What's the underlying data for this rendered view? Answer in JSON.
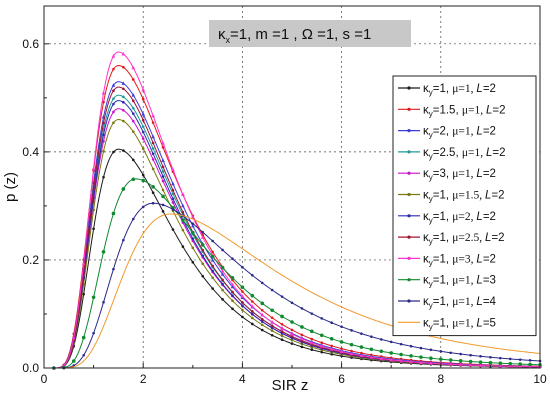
{
  "chart_data": {
    "type": "line",
    "title": "",
    "annotation": {
      "kappa_x": "κ",
      "kappa_x_sub": "x",
      "rest": "=1, m =1 , Ω =1, s =1"
    },
    "xlabel": "SIR z",
    "ylabel": "p (z)",
    "xlim": [
      0,
      10
    ],
    "ylim": [
      0,
      0.67
    ],
    "xticks": [
      0,
      2,
      4,
      6,
      8,
      10
    ],
    "yticks": [
      0.0,
      0.2,
      0.4,
      0.6
    ],
    "ytick_labels": [
      "0.0",
      "0.2",
      "0.4",
      "0.6"
    ],
    "grid": true,
    "legend_position": "right",
    "series": [
      {
        "name": "κy=1, μ=1, L=2",
        "legend": {
          "a": "κ",
          "sub": "y",
          "b": "=1, ",
          "mu": "μ=1, ",
          "L": "L",
          "c": "=2"
        },
        "color": "#1a1a1a",
        "marker": "point",
        "peak_x": 1.5,
        "peak_y": 0.405,
        "k": 5.5
      },
      {
        "name": "κy=1.5, μ=1, L=2",
        "legend": {
          "a": "κ",
          "sub": "y",
          "b": "=1.5, ",
          "mu": "μ=1, ",
          "L": "L",
          "c": "=2"
        },
        "color": "#e01b1b",
        "marker": "point",
        "peak_x": 1.5,
        "peak_y": 0.56,
        "k": 5.2
      },
      {
        "name": "κy=2, μ=1, L=2",
        "legend": {
          "a": "κ",
          "sub": "y",
          "b": "=2, ",
          "mu": "μ=1, ",
          "L": "L",
          "c": "=2"
        },
        "color": "#3c3cd8",
        "marker": "triangle",
        "peak_x": 1.5,
        "peak_y": 0.53,
        "k": 5.3
      },
      {
        "name": "κy=2.5, μ=1, L=2",
        "legend": {
          "a": "κ",
          "sub": "y",
          "b": "=2.5, ",
          "mu": "μ=1, ",
          "L": "L",
          "c": "=2"
        },
        "color": "#1e9a9a",
        "marker": "point",
        "peak_x": 1.5,
        "peak_y": 0.505,
        "k": 5.4
      },
      {
        "name": "κy=3, μ=1, L=2",
        "legend": {
          "a": "κ",
          "sub": "y",
          "b": "=3, ",
          "mu": "μ=1, ",
          "L": "L",
          "c": "=2"
        },
        "color": "#cc11cc",
        "marker": "point",
        "peak_x": 1.5,
        "peak_y": 0.48,
        "k": 5.4
      },
      {
        "name": "κy=1, μ=1.5, L=2",
        "legend": {
          "a": "κ",
          "sub": "y",
          "b": "=1, ",
          "mu": "μ=1.5, ",
          "L": "L",
          "c": "=2"
        },
        "color": "#7a7a10",
        "marker": "point",
        "peak_x": 1.5,
        "peak_y": 0.46,
        "k": 5.5
      },
      {
        "name": "κy=1, μ=2, L=2",
        "legend": {
          "a": "κ",
          "sub": "y",
          "b": "=1, ",
          "mu": "μ=2, ",
          "L": "L",
          "c": "=2"
        },
        "color": "#2b2bb0",
        "marker": "point",
        "peak_x": 1.5,
        "peak_y": 0.495,
        "k": 5.5
      },
      {
        "name": "κy=1, μ=2.5, L=2",
        "legend": {
          "a": "κ",
          "sub": "y",
          "b": "=1, ",
          "mu": "μ=2.5, ",
          "L": "L",
          "c": "=2"
        },
        "color": "#a01530",
        "marker": "point",
        "peak_x": 1.5,
        "peak_y": 0.52,
        "k": 5.5
      },
      {
        "name": "κy=1, μ=3, L=2",
        "legend": {
          "a": "κ",
          "sub": "y",
          "b": "=1, ",
          "mu": "μ=3, ",
          "L": "L",
          "c": "=2"
        },
        "color": "#ff33cc",
        "marker": "triangle",
        "peak_x": 1.5,
        "peak_y": 0.585,
        "k": 5.6
      },
      {
        "name": "κy=1, μ=1, L=3",
        "legend": {
          "a": "κ",
          "sub": "y",
          "b": "=1, ",
          "mu": "μ=1, ",
          "L": "L",
          "c": "=3"
        },
        "color": "#0f8a2f",
        "marker": "circle",
        "peak_x": 1.85,
        "peak_y": 0.35,
        "k": 5.2
      },
      {
        "name": "κy=1, μ=1, L=4",
        "legend": {
          "a": "κ",
          "sub": "y",
          "b": "=1, ",
          "mu": "μ=1, ",
          "L": "L",
          "c": "=4"
        },
        "color": "#2a2a8a",
        "marker": "point",
        "peak_x": 2.2,
        "peak_y": 0.305,
        "k": 5.0
      },
      {
        "name": "κy=1, μ=1, L=5",
        "legend": {
          "a": "κ",
          "sub": "y",
          "b": "=1, ",
          "mu": "μ=1, ",
          "L": "L",
          "c": "=5"
        },
        "color": "#f29a2e",
        "marker": "none",
        "peak_x": 2.55,
        "peak_y": 0.285,
        "k": 4.6
      }
    ]
  }
}
